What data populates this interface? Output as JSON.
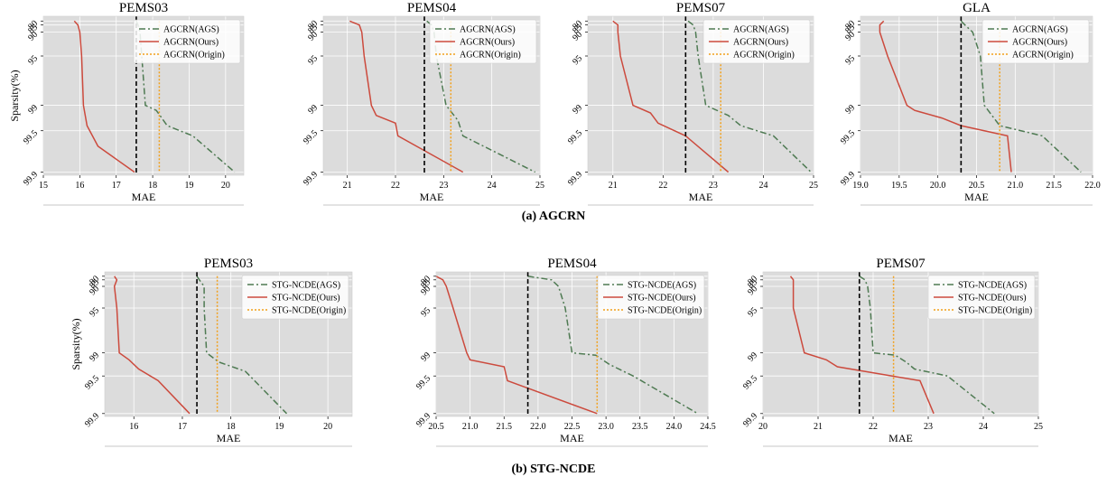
{
  "captions": [
    "(a) AGCRN",
    "(b) STG-NCDE"
  ],
  "colors": {
    "ags": "#4e7a52",
    "ours": "#cc4a3d",
    "origin": "#f2a01b",
    "ref": "#000000",
    "bg": "#dcdcdc"
  },
  "chart_data": [
    {
      "type": "line",
      "title": "PEMS03",
      "xlabel": "MAE",
      "ylabel": "Sparsity(%)",
      "xlim": [
        15,
        20.5
      ],
      "xticks": [
        "15",
        "16",
        "17",
        "18",
        "19",
        "20"
      ],
      "yticks": [
        "80",
        "85",
        "90",
        "95",
        "99",
        "99.5",
        "99.9"
      ],
      "reference_line_x": 17.55,
      "origin_line_x": 18.18,
      "legend_position": "top-right",
      "grid": true,
      "series": [
        {
          "name": "AGCRN(AGS)",
          "style": "dashdot",
          "points": [
            [
              17.55,
              80
            ],
            [
              17.6,
              85
            ],
            [
              17.65,
              90
            ],
            [
              17.7,
              95
            ],
            [
              17.8,
              99
            ],
            [
              18.1,
              99.1
            ],
            [
              18.4,
              99.4
            ],
            [
              19.1,
              99.55
            ],
            [
              20.25,
              99.9
            ]
          ]
        },
        {
          "name": "AGCRN(Ours)",
          "style": "solid",
          "points": [
            [
              15.85,
              80
            ],
            [
              15.95,
              85
            ],
            [
              16.0,
              90
            ],
            [
              16.05,
              95
            ],
            [
              16.1,
              99
            ],
            [
              16.2,
              99.4
            ],
            [
              16.5,
              99.65
            ],
            [
              17.5,
              99.9
            ]
          ]
        },
        {
          "name": "AGCRN(Origin)",
          "style": "dotted",
          "points": [
            [
              18.18,
              80
            ],
            [
              18.18,
              99.9
            ]
          ]
        }
      ]
    },
    {
      "type": "line",
      "title": "PEMS04",
      "xlabel": "MAE",
      "ylabel": "",
      "xlim": [
        20.5,
        25
      ],
      "xticks": [
        "21",
        "22",
        "23",
        "24",
        "25"
      ],
      "yticks": [
        "80",
        "85",
        "90",
        "95",
        "99",
        "99.5",
        "99.9"
      ],
      "reference_line_x": 22.6,
      "origin_line_x": 23.15,
      "legend_position": "top-right",
      "grid": true,
      "series": [
        {
          "name": "AGCRN(AGS)",
          "style": "dashdot",
          "points": [
            [
              22.65,
              80
            ],
            [
              22.75,
              85
            ],
            [
              22.8,
              90
            ],
            [
              22.85,
              95
            ],
            [
              23.05,
              99
            ],
            [
              23.3,
              99.3
            ],
            [
              23.4,
              99.55
            ],
            [
              24.9,
              99.9
            ]
          ]
        },
        {
          "name": "AGCRN(Ours)",
          "style": "solid",
          "points": [
            [
              21.05,
              80
            ],
            [
              21.25,
              85
            ],
            [
              21.3,
              90
            ],
            [
              21.35,
              95
            ],
            [
              21.5,
              99
            ],
            [
              21.6,
              99.2
            ],
            [
              22.0,
              99.35
            ],
            [
              22.05,
              99.55
            ],
            [
              23.4,
              99.9
            ]
          ]
        },
        {
          "name": "AGCRN(Origin)",
          "style": "dotted",
          "points": [
            [
              23.15,
              80
            ],
            [
              23.15,
              99.9
            ]
          ]
        }
      ]
    },
    {
      "type": "line",
      "title": "PEMS07",
      "xlabel": "MAE",
      "ylabel": "",
      "xlim": [
        20.5,
        25
      ],
      "xticks": [
        "21",
        "22",
        "23",
        "24",
        "25"
      ],
      "yticks": [
        "80",
        "85",
        "90",
        "95",
        "99",
        "99.5",
        "99.9"
      ],
      "reference_line_x": 22.45,
      "origin_line_x": 23.15,
      "legend_position": "top-right",
      "grid": true,
      "series": [
        {
          "name": "AGCRN(AGS)",
          "style": "dashdot",
          "points": [
            [
              22.5,
              80
            ],
            [
              22.6,
              85
            ],
            [
              22.65,
              90
            ],
            [
              22.7,
              95
            ],
            [
              22.85,
              99
            ],
            [
              23.3,
              99.2
            ],
            [
              23.55,
              99.4
            ],
            [
              24.2,
              99.55
            ],
            [
              24.95,
              99.9
            ]
          ]
        },
        {
          "name": "AGCRN(Ours)",
          "style": "solid",
          "points": [
            [
              21.0,
              80
            ],
            [
              21.1,
              85
            ],
            [
              21.1,
              90
            ],
            [
              21.15,
              95
            ],
            [
              21.4,
              99
            ],
            [
              21.75,
              99.15
            ],
            [
              21.9,
              99.35
            ],
            [
              22.45,
              99.55
            ],
            [
              23.3,
              99.9
            ]
          ]
        },
        {
          "name": "AGCRN(Origin)",
          "style": "dotted",
          "points": [
            [
              23.15,
              80
            ],
            [
              23.15,
              99.9
            ]
          ]
        }
      ]
    },
    {
      "type": "line",
      "title": "GLA",
      "xlabel": "MAE",
      "ylabel": "",
      "xlim": [
        19.0,
        22.0
      ],
      "xticks": [
        "19.0",
        "19.5",
        "20.0",
        "20.5",
        "21.0",
        "21.5",
        "22.0"
      ],
      "yticks": [
        "80",
        "85",
        "90",
        "95",
        "99",
        "99.5",
        "99.9"
      ],
      "reference_line_x": 20.3,
      "origin_line_x": 20.8,
      "legend_position": "top-right",
      "grid": true,
      "series": [
        {
          "name": "AGCRN(AGS)",
          "style": "dashdot",
          "points": [
            [
              20.3,
              80
            ],
            [
              20.35,
              85
            ],
            [
              20.45,
              90
            ],
            [
              20.55,
              95
            ],
            [
              20.6,
              99
            ],
            [
              20.7,
              99.2
            ],
            [
              20.8,
              99.4
            ],
            [
              21.35,
              99.55
            ],
            [
              21.85,
              99.9
            ]
          ]
        },
        {
          "name": "AGCRN(Ours)",
          "style": "solid",
          "points": [
            [
              19.3,
              80
            ],
            [
              19.25,
              85
            ],
            [
              19.25,
              90
            ],
            [
              19.35,
              95
            ],
            [
              19.6,
              99
            ],
            [
              19.7,
              99.1
            ],
            [
              20.05,
              99.25
            ],
            [
              20.3,
              99.4
            ],
            [
              20.9,
              99.55
            ],
            [
              20.95,
              99.9
            ]
          ]
        },
        {
          "name": "AGCRN(Origin)",
          "style": "dotted",
          "points": [
            [
              20.8,
              80
            ],
            [
              20.8,
              99.9
            ]
          ]
        }
      ]
    },
    {
      "type": "line",
      "title": "PEMS03",
      "xlabel": "MAE",
      "ylabel": "Sparsity(%)",
      "xlim": [
        15.4,
        20.5
      ],
      "xticks": [
        "16",
        "17",
        "18",
        "19",
        "20"
      ],
      "yticks": [
        "80",
        "85",
        "90",
        "95",
        "99",
        "99.5",
        "99.9"
      ],
      "reference_line_x": 17.3,
      "origin_line_x": 17.72,
      "legend_position": "top-right",
      "grid": true,
      "series": [
        {
          "name": "STG-NCDE(AGS)",
          "style": "dashdot",
          "points": [
            [
              17.3,
              80
            ],
            [
              17.35,
              85
            ],
            [
              17.45,
              90
            ],
            [
              17.45,
              95
            ],
            [
              17.5,
              99
            ],
            [
              17.75,
              99.2
            ],
            [
              18.3,
              99.4
            ],
            [
              19.15,
              99.9
            ]
          ]
        },
        {
          "name": "STG-NCDE(Ours)",
          "style": "solid",
          "points": [
            [
              15.6,
              80
            ],
            [
              15.65,
              85
            ],
            [
              15.6,
              90
            ],
            [
              15.65,
              95
            ],
            [
              15.7,
              99
            ],
            [
              15.9,
              99.15
            ],
            [
              16.1,
              99.35
            ],
            [
              16.5,
              99.55
            ],
            [
              17.15,
              99.9
            ]
          ]
        },
        {
          "name": "STG-NCDE(Origin)",
          "style": "dotted",
          "points": [
            [
              17.72,
              80
            ],
            [
              17.72,
              99.9
            ]
          ]
        }
      ]
    },
    {
      "type": "line",
      "title": "PEMS04",
      "xlabel": "MAE",
      "ylabel": "",
      "xlim": [
        20.5,
        24.5
      ],
      "xticks": [
        "20.5",
        "21.0",
        "21.5",
        "22.0",
        "22.5",
        "23.0",
        "23.5",
        "24.0",
        "24.5"
      ],
      "yticks": [
        "80",
        "85",
        "90",
        "95",
        "99",
        "99.5",
        "99.9"
      ],
      "reference_line_x": 21.85,
      "origin_line_x": 22.87,
      "legend_position": "top-right",
      "grid": true,
      "series": [
        {
          "name": "STG-NCDE(AGS)",
          "style": "dashdot",
          "points": [
            [
              21.85,
              80
            ],
            [
              22.2,
              85
            ],
            [
              22.3,
              90
            ],
            [
              22.4,
              95
            ],
            [
              22.5,
              99
            ],
            [
              22.85,
              99.05
            ],
            [
              23.05,
              99.25
            ],
            [
              23.4,
              99.5
            ],
            [
              24.35,
              99.9
            ]
          ]
        },
        {
          "name": "STG-NCDE(Ours)",
          "style": "solid",
          "points": [
            [
              20.5,
              80
            ],
            [
              20.6,
              85
            ],
            [
              20.65,
              90
            ],
            [
              20.75,
              95
            ],
            [
              20.95,
              99
            ],
            [
              21.0,
              99.15
            ],
            [
              21.5,
              99.3
            ],
            [
              21.55,
              99.55
            ],
            [
              22.87,
              99.9
            ]
          ]
        },
        {
          "name": "STG-NCDE(Origin)",
          "style": "dotted",
          "points": [
            [
              22.87,
              80
            ],
            [
              22.87,
              99.9
            ]
          ]
        }
      ]
    },
    {
      "type": "line",
      "title": "PEMS07",
      "xlabel": "MAE",
      "ylabel": "",
      "xlim": [
        20,
        25
      ],
      "xticks": [
        "20",
        "21",
        "22",
        "23",
        "24",
        "25"
      ],
      "yticks": [
        "80",
        "85",
        "90",
        "95",
        "99",
        "99.5",
        "99.9"
      ],
      "reference_line_x": 21.75,
      "origin_line_x": 22.37,
      "legend_position": "top-right",
      "grid": true,
      "series": [
        {
          "name": "STG-NCDE(AGS)",
          "style": "dashdot",
          "points": [
            [
              21.75,
              80
            ],
            [
              21.85,
              85
            ],
            [
              21.9,
              90
            ],
            [
              21.95,
              95
            ],
            [
              22.0,
              99
            ],
            [
              22.4,
              99.05
            ],
            [
              22.6,
              99.2
            ],
            [
              22.75,
              99.35
            ],
            [
              23.35,
              99.5
            ],
            [
              24.2,
              99.9
            ]
          ]
        },
        {
          "name": "STG-NCDE(Ours)",
          "style": "solid",
          "points": [
            [
              20.5,
              80
            ],
            [
              20.55,
              85
            ],
            [
              20.55,
              90
            ],
            [
              20.55,
              95
            ],
            [
              20.75,
              99
            ],
            [
              21.15,
              99.15
            ],
            [
              21.35,
              99.3
            ],
            [
              22.85,
              99.55
            ],
            [
              23.1,
              99.9
            ]
          ]
        },
        {
          "name": "STG-NCDE(Origin)",
          "style": "dotted",
          "points": [
            [
              22.37,
              80
            ],
            [
              22.37,
              99.9
            ]
          ]
        }
      ]
    }
  ]
}
